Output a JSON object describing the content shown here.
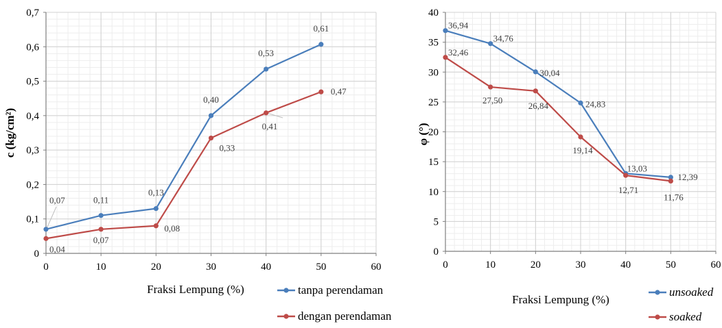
{
  "chart_data": [
    {
      "type": "line",
      "title": "",
      "xlabel": "Fraksi Lempung (%)",
      "ylabel": "c  (kg/cm²)",
      "xlim": [
        0,
        60
      ],
      "ylim": [
        0,
        0.7
      ],
      "x_ticks": [
        "0",
        "10",
        "20",
        "30",
        "40",
        "50",
        "60"
      ],
      "y_ticks": [
        "0",
        "0,1",
        "0,2",
        "0,3",
        "0,4",
        "0,5",
        "0,6",
        "0,7"
      ],
      "grid": true,
      "legend_position": "bottom-right",
      "x": [
        0,
        10,
        20,
        30,
        40,
        50
      ],
      "series": [
        {
          "name": "tanpa perendaman",
          "color": "#4a7ebb",
          "values": [
            0.07,
            0.11,
            0.13,
            0.4,
            0.535,
            0.607
          ],
          "labels": [
            "0,07",
            "0,11",
            "0,13",
            "0,40",
            "0,53",
            "0,61"
          ]
        },
        {
          "name": "dengan perendaman",
          "color": "#be4b48",
          "values": [
            0.043,
            0.07,
            0.08,
            0.335,
            0.408,
            0.469
          ],
          "labels": [
            "0,04",
            "0,07",
            "0,08",
            "0,33",
            "0,41",
            "0,47"
          ]
        }
      ]
    },
    {
      "type": "line",
      "title": "",
      "xlabel": "Fraksi Lempung (%)",
      "ylabel": "φ   (°)",
      "xlim": [
        0,
        60
      ],
      "ylim": [
        0,
        40
      ],
      "x_ticks": [
        "0",
        "10",
        "20",
        "30",
        "40",
        "50",
        "60"
      ],
      "y_ticks": [
        "0",
        "5",
        "10",
        "15",
        "20",
        "25",
        "30",
        "35",
        "40"
      ],
      "grid": true,
      "legend_position": "bottom-right",
      "x": [
        0,
        10,
        20,
        30,
        40,
        50
      ],
      "series": [
        {
          "name": "unsoaked",
          "color": "#4a7ebb",
          "values": [
            36.94,
            34.76,
            30.04,
            24.83,
            13.03,
            12.39
          ],
          "labels": [
            "36,94",
            "34,76",
            "30,04",
            "24,83",
            "13,03",
            "12,39"
          ]
        },
        {
          "name": "soaked",
          "color": "#be4b48",
          "values": [
            32.46,
            27.5,
            26.84,
            19.14,
            12.71,
            11.76
          ],
          "labels": [
            "32,46",
            "27,50",
            "26,84",
            "19,14",
            "12,71",
            "11,76"
          ]
        }
      ]
    }
  ]
}
